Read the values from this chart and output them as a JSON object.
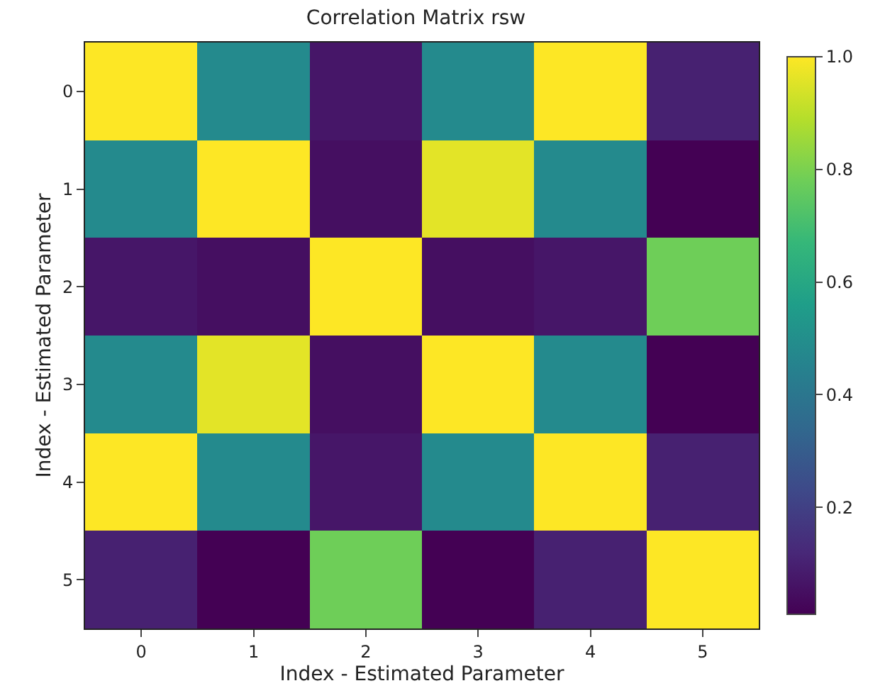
{
  "chart_data": {
    "type": "heatmap",
    "title": "Correlation Matrix rsw",
    "xlabel": "Index - Estimated Parameter",
    "ylabel": "Index - Estimated Parameter",
    "categories": [
      "0",
      "1",
      "2",
      "3",
      "4",
      "5"
    ],
    "y_categories": [
      "0",
      "1",
      "2",
      "3",
      "4",
      "5"
    ],
    "cells": [
      [
        1.0,
        0.48,
        0.07,
        0.48,
        1.0,
        0.1
      ],
      [
        0.48,
        1.0,
        0.05,
        0.96,
        0.48,
        0.01
      ],
      [
        0.07,
        0.05,
        1.0,
        0.05,
        0.07,
        0.78
      ],
      [
        0.48,
        0.96,
        0.05,
        1.0,
        0.48,
        0.01
      ],
      [
        1.0,
        0.48,
        0.07,
        0.48,
        1.0,
        0.1
      ],
      [
        0.1,
        0.01,
        0.78,
        0.01,
        0.1,
        1.0
      ]
    ],
    "clim": [
      0.01,
      1.0
    ],
    "cticks": [
      0.2,
      0.4,
      0.6,
      0.8,
      {
        "value": 1.0,
        "label": "1.0"
      }
    ]
  }
}
